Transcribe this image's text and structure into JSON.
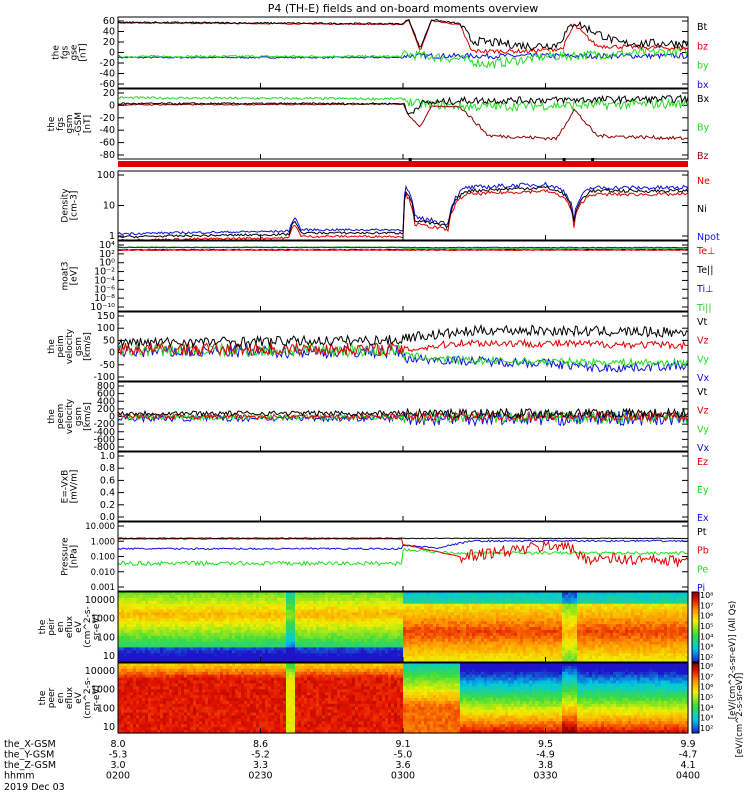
{
  "title": "P4 (TH-E) fields and on-board moments overview",
  "colors": {
    "black": "#000000",
    "red": "#e00000",
    "green": "#22dd22",
    "blue": "#1010dd",
    "darkred": "#8b0000",
    "lime": "#33cc33"
  },
  "chart_data": [
    {
      "type": "line",
      "id": "fgs_gse",
      "ylabel": [
        "the",
        "fgs",
        "gse",
        "[nT]"
      ],
      "yticks": [
        "60",
        "40",
        "20",
        "0",
        "-20",
        "-40",
        "-60"
      ],
      "ylim": [
        -70,
        65
      ],
      "legend": [
        {
          "name": "Bt",
          "color": "#000000"
        },
        {
          "name": "bz",
          "color": "#e00000"
        },
        {
          "name": "by",
          "color": "#22dd22"
        },
        {
          "name": "bx",
          "color": "#1010dd"
        }
      ]
    },
    {
      "type": "line",
      "id": "fgs_gsm",
      "ylabel": [
        "the",
        "fgs",
        "gsm",
        "-GSM",
        "[nT]"
      ],
      "yticks": [
        "20",
        "0",
        "-20",
        "-40",
        "-60",
        "-80"
      ],
      "ylim": [
        -95,
        25
      ],
      "legend": [
        {
          "name": "Bx",
          "color": "#000000"
        },
        {
          "name": "By",
          "color": "#22dd22"
        },
        {
          "name": "Bz",
          "color": "#8b0000"
        }
      ]
    },
    {
      "type": "line",
      "id": "density",
      "ylabel": [
        "Density",
        "[cm-3]"
      ],
      "yticks": [
        "100",
        "10",
        "1"
      ],
      "scale": "log",
      "legend": [
        {
          "name": "Ne",
          "color": "#e00000"
        },
        {
          "name": "Ni",
          "color": "#000000"
        },
        {
          "name": "Npot",
          "color": "#1010dd"
        }
      ]
    },
    {
      "type": "line",
      "id": "temp",
      "ylabel": [
        "moat3",
        "[eV]"
      ],
      "yticks": [
        "10⁴",
        "10²",
        "10⁰",
        "10⁻²",
        "10⁻⁴",
        "10⁻⁶",
        "10⁻⁸",
        "10⁻¹⁰"
      ],
      "scale": "log",
      "legend": [
        {
          "name": "Te⊥",
          "color": "#e00000"
        },
        {
          "name": "Te||",
          "color": "#000000"
        },
        {
          "name": "Ti⊥",
          "color": "#1010dd"
        },
        {
          "name": "Ti||",
          "color": "#33cc33"
        }
      ]
    },
    {
      "type": "line",
      "id": "peim_vel",
      "ylabel": [
        "the",
        "peim",
        "velocity",
        "gsm",
        "[km/s]"
      ],
      "yticks": [
        "150",
        "100",
        "50",
        "0",
        "-50",
        "-100"
      ],
      "ylim": [
        -110,
        160
      ],
      "legend": [
        {
          "name": "Vt",
          "color": "#000000"
        },
        {
          "name": "Vz",
          "color": "#e00000"
        },
        {
          "name": "Vy",
          "color": "#22dd22"
        },
        {
          "name": "Vx",
          "color": "#1010dd"
        }
      ]
    },
    {
      "type": "line",
      "id": "peem_vel",
      "ylabel": [
        "the",
        "peem",
        "velocity",
        "gsm",
        "[km/s]"
      ],
      "yticks": [
        "800",
        "600",
        "400",
        "200",
        "0",
        "-200",
        "-400",
        "-600",
        "-800"
      ],
      "ylim": [
        -850,
        850
      ],
      "legend": [
        {
          "name": "Vt",
          "color": "#000000"
        },
        {
          "name": "Vz",
          "color": "#e00000"
        },
        {
          "name": "Vy",
          "color": "#22dd22"
        },
        {
          "name": "Vx",
          "color": "#1010dd"
        }
      ]
    },
    {
      "type": "line",
      "id": "efield",
      "ylabel": [
        "E=-VxB",
        "[mV/m]"
      ],
      "yticks": [
        "1.0",
        "0.8",
        "0.6",
        "0.4",
        "0.2",
        "0.0"
      ],
      "ylim": [
        0,
        1
      ],
      "legend": [
        {
          "name": "Ez",
          "color": "#e00000"
        },
        {
          "name": "Ey",
          "color": "#22dd22"
        },
        {
          "name": "Ex",
          "color": "#1010dd"
        }
      ]
    },
    {
      "type": "line",
      "id": "pressure",
      "ylabel": [
        "Pressure",
        "[nPa]"
      ],
      "yticks": [
        "10.000",
        "1.000",
        "0.100",
        "0.010",
        "0.001"
      ],
      "scale": "log",
      "legend": [
        {
          "name": "Pt",
          "color": "#000000"
        },
        {
          "name": "Pb",
          "color": "#e00000"
        },
        {
          "name": "Pe",
          "color": "#22dd22"
        },
        {
          "name": "Pi",
          "color": "#1010dd"
        }
      ]
    },
    {
      "type": "heatmap",
      "id": "peir",
      "ylabel": [
        "the",
        "peir",
        "en",
        "eflux",
        "eV",
        "(cm^2-s-",
        "sr-eV)"
      ],
      "yticks": [
        "10000",
        "1000",
        "100",
        "10"
      ],
      "scale": "log"
    },
    {
      "type": "heatmap",
      "id": "peer",
      "ylabel": [
        "the",
        "peer",
        "en",
        "eflux",
        "eV",
        "(cm^2-s-",
        "sr-eV)"
      ],
      "yticks": [
        "10000",
        "1000",
        "100",
        "10"
      ],
      "scale": "log"
    }
  ],
  "colorbar": {
    "ticks": [
      "10⁸",
      "10⁷",
      "10⁶",
      "10⁵",
      "10⁴",
      "10³",
      "10²"
    ],
    "label": "[eV/(cm^2-s-sr-eV)] (All Qs)",
    "label2": "[eV/(cm^2-s-sr-eV)]"
  },
  "xaxis": {
    "rows": [
      {
        "label": "the_X-GSM",
        "values": [
          "8.0",
          "8.6",
          "9.1",
          "9.5",
          "9.9"
        ]
      },
      {
        "label": "the_Y-GSM",
        "values": [
          "-5.3",
          "-5.2",
          "-5.0",
          "-4.9",
          "-4.7"
        ]
      },
      {
        "label": "the_Z-GSM",
        "values": [
          "3.0",
          "3.3",
          "3.6",
          "3.8",
          "4.1"
        ]
      },
      {
        "label": "hhmm",
        "values": [
          "0200",
          "0230",
          "0300",
          "0330",
          "0400"
        ]
      }
    ],
    "date": "2019 Dec 03"
  }
}
